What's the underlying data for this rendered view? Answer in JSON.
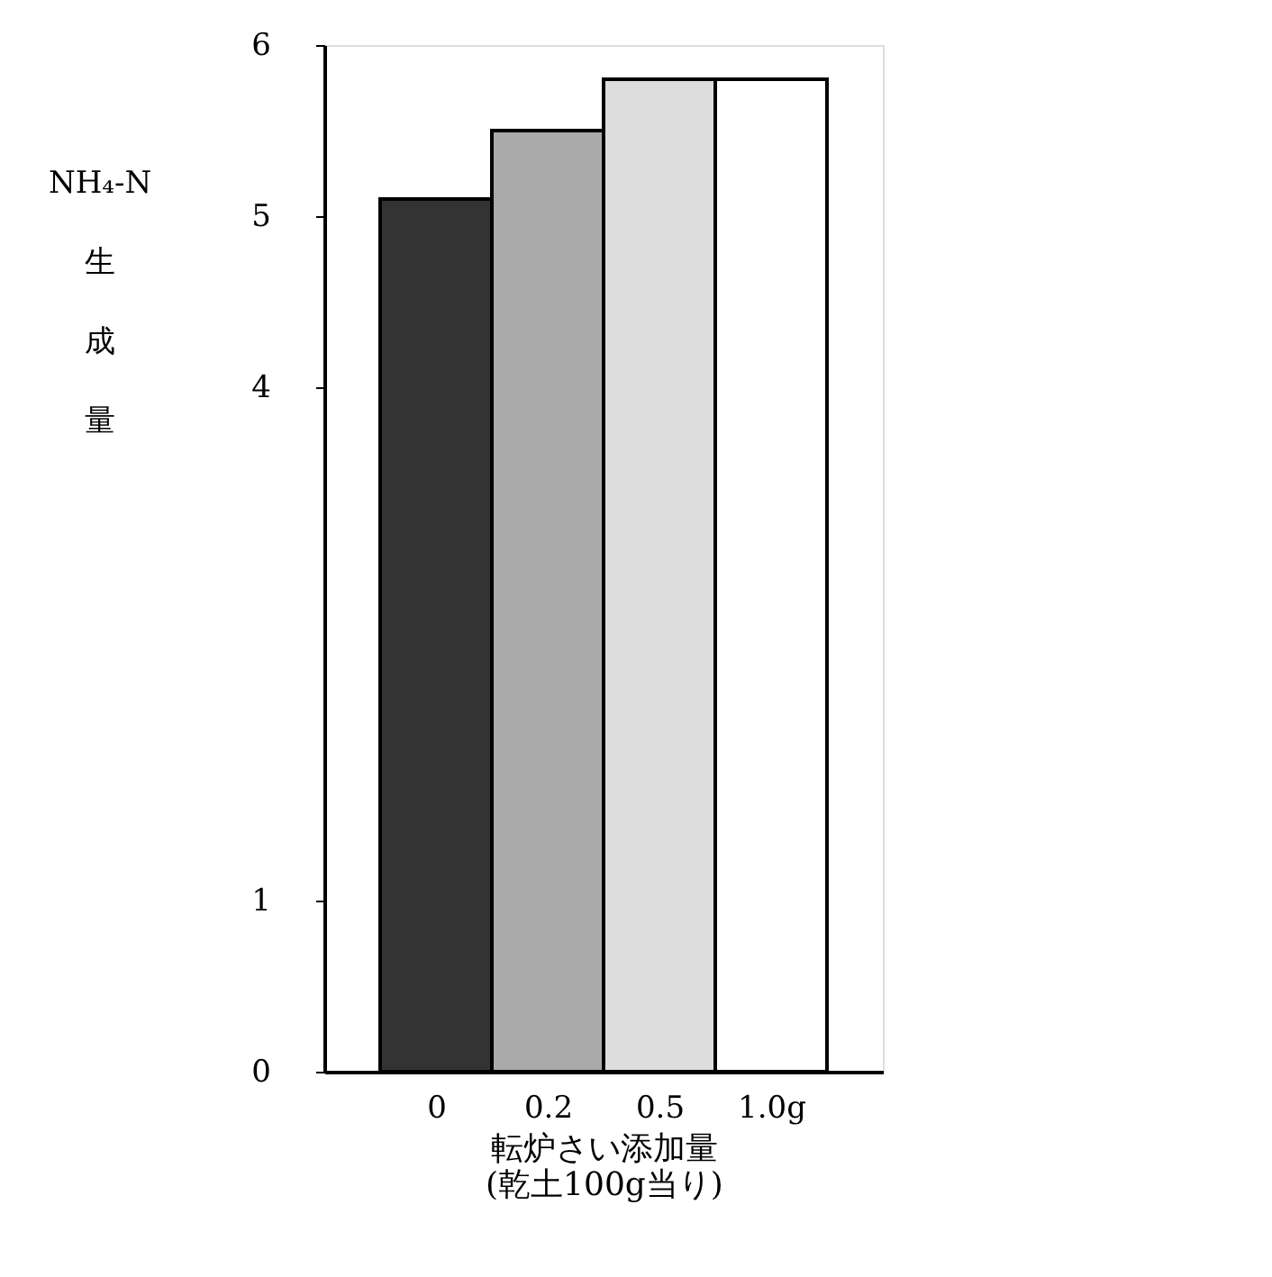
{
  "chart_data": {
    "type": "bar",
    "categories": [
      "0",
      "0.2",
      "0.5",
      "1.0g"
    ],
    "values": [
      5.1,
      5.5,
      5.8,
      5.8
    ],
    "colors": [
      "#333333",
      "#aaaaaa",
      "#dddddd",
      "#ffffff"
    ],
    "xlabel": "転炉さい添加量 (乾土100g当り)",
    "ylabel": "NH₄-N生成量",
    "ylim": [
      0,
      6
    ],
    "yticks": [
      0,
      1,
      4,
      5,
      6
    ],
    "grid": false
  }
}
